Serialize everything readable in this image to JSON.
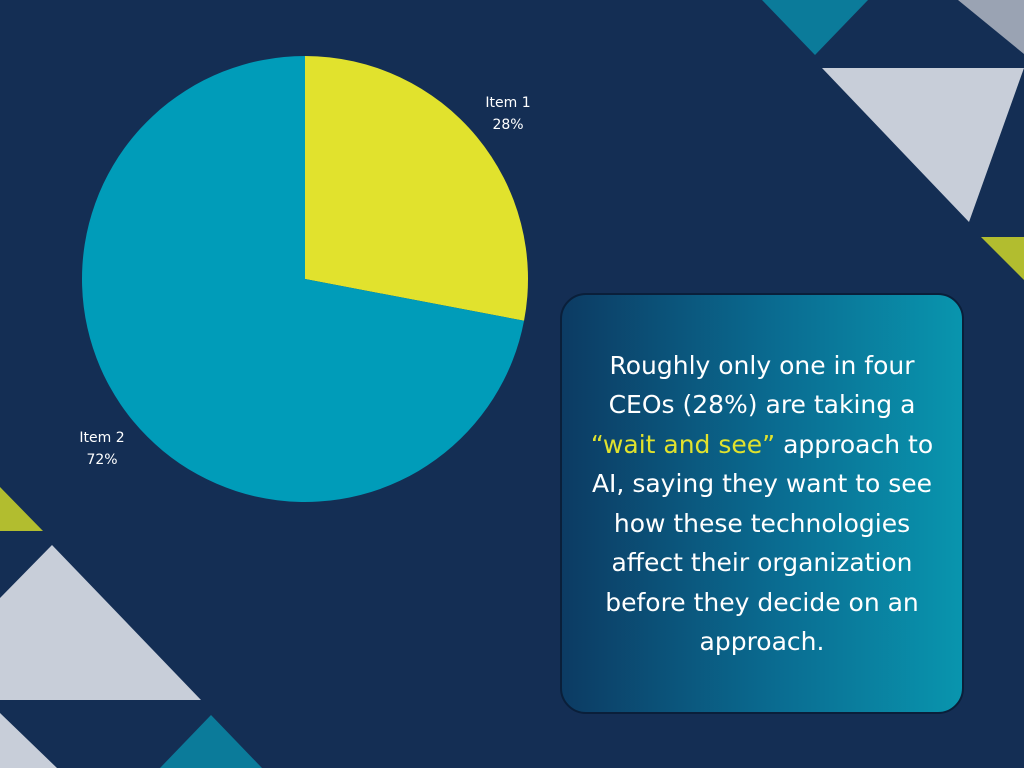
{
  "colors": {
    "background": "#142e54",
    "item1": "#e1e22d",
    "item2": "#009cb9",
    "highlight": "#e1e22d",
    "triangle_light": "#c8ced9",
    "triangle_gray": "#9aa3b3",
    "triangle_teal": "#0b7b9a",
    "triangle_olive": "#b2bd2f"
  },
  "chart_data": {
    "type": "pie",
    "categories": [
      "Item 1",
      "Item 2"
    ],
    "values": [
      28,
      72
    ],
    "labels": [
      {
        "name": "Item 1",
        "value": "28%"
      },
      {
        "name": "Item 2",
        "value": "72%"
      }
    ],
    "start": "12 o'clock",
    "direction": "clockwise",
    "title": "",
    "legend": "none"
  },
  "callout": {
    "text_before": "Roughly only one in four CEOs (28%) are taking a",
    "highlight": "“wait and see”",
    "text_after": "approach to AI, saying they want to see how these technologies affect their organization before they decide on an approach."
  }
}
